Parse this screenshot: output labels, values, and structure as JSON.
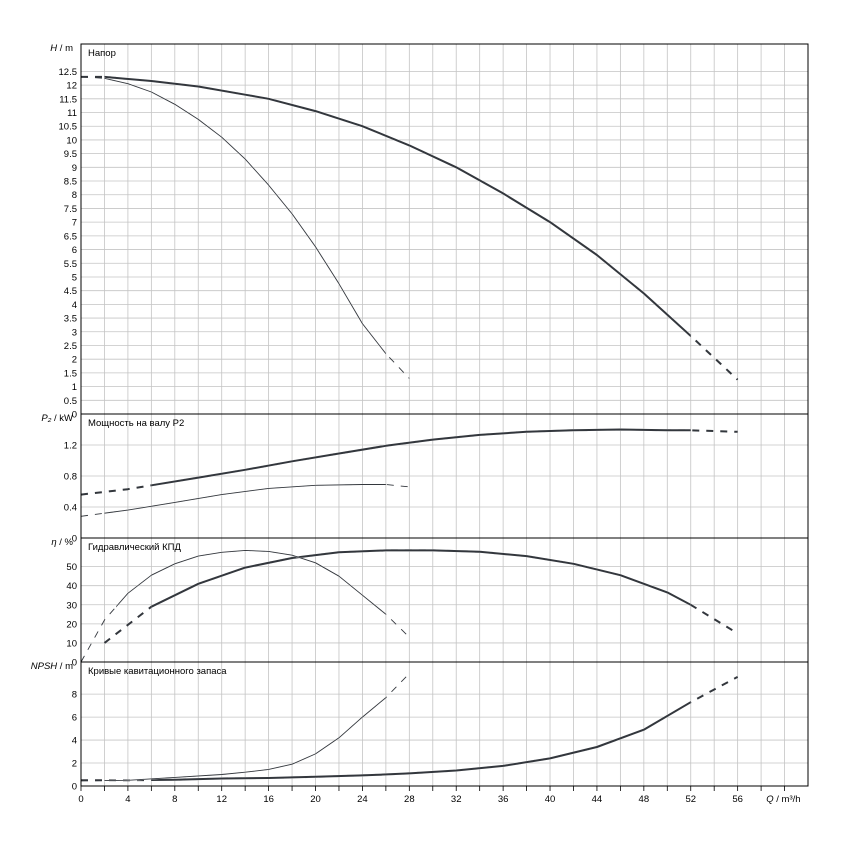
{
  "chart_data": {
    "type": "line",
    "x_axis": {
      "label_var": "Q",
      "label_unit": "m³/h",
      "min": 0,
      "max": 62,
      "ticks": [
        0,
        4,
        8,
        12,
        16,
        20,
        24,
        28,
        32,
        36,
        40,
        44,
        48,
        52,
        56
      ],
      "grid": true
    },
    "panels": [
      {
        "id": "head",
        "title": "Напор",
        "ylabel_var": "H",
        "ylabel_unit": "m",
        "ymin": 0,
        "ymax": 13.5,
        "yticks": [
          0,
          0.5,
          1,
          1.5,
          2,
          2.5,
          3,
          3.5,
          4,
          4.5,
          5,
          5.5,
          6,
          6.5,
          7,
          7.5,
          8,
          8.5,
          9,
          9.5,
          10,
          10.5,
          11,
          11.5,
          12,
          12.5
        ],
        "grid": true,
        "series": [
          {
            "curve": "max-speed",
            "weight": "bold",
            "x": [
              0,
              2,
              6,
              10,
              14,
              16,
              20,
              24,
              28,
              32,
              36,
              40,
              44,
              48,
              52,
              56
            ],
            "y": [
              12.3,
              12.3,
              12.15,
              11.95,
              11.65,
              11.5,
              11.05,
              10.5,
              9.8,
              9.0,
              8.05,
              7.0,
              5.8,
              4.4,
              2.85,
              1.25
            ],
            "solid_range": [
              2,
              52
            ]
          },
          {
            "curve": "min-speed",
            "weight": "thin",
            "x": [
              0,
              2,
              4,
              6,
              8,
              10,
              12,
              14,
              16,
              18,
              20,
              22,
              24,
              26,
              28
            ],
            "y": [
              12.3,
              12.25,
              12.05,
              11.75,
              11.3,
              10.75,
              10.1,
              9.3,
              8.35,
              7.3,
              6.1,
              4.75,
              3.3,
              2.2,
              1.3
            ],
            "solid_range": [
              2,
              26
            ]
          }
        ]
      },
      {
        "id": "power",
        "title": "Мощность на валу P2",
        "ylabel_var": "P₂",
        "ylabel_unit": "kW",
        "ymin": 0,
        "ymax": 1.6,
        "yticks": [
          0,
          0.4,
          0.8,
          1.2
        ],
        "grid": true,
        "series": [
          {
            "curve": "max-speed",
            "weight": "bold",
            "x": [
              0,
              4,
              6,
              10,
              14,
              18,
              22,
              26,
              30,
              34,
              38,
              42,
              46,
              50,
              52,
              56
            ],
            "y": [
              0.56,
              0.63,
              0.68,
              0.78,
              0.88,
              0.99,
              1.09,
              1.19,
              1.27,
              1.33,
              1.37,
              1.39,
              1.4,
              1.39,
              1.39,
              1.37
            ],
            "solid_range": [
              6,
              52
            ]
          },
          {
            "curve": "min-speed",
            "weight": "thin",
            "x": [
              0,
              4,
              8,
              12,
              16,
              20,
              24,
              26,
              28
            ],
            "y": [
              0.28,
              0.36,
              0.46,
              0.56,
              0.64,
              0.68,
              0.69,
              0.69,
              0.66
            ],
            "solid_range": [
              2,
              26
            ]
          }
        ]
      },
      {
        "id": "efficiency",
        "title": "Гидравлический КПД",
        "ylabel_var": "η",
        "ylabel_unit": "%",
        "ymin": 0,
        "ymax": 65,
        "yticks": [
          0,
          10,
          20,
          30,
          40,
          50
        ],
        "grid": true,
        "series": [
          {
            "curve": "max-speed",
            "weight": "bold",
            "x": [
              2,
              6,
              10,
              14,
              18,
              22,
              26,
              30,
              34,
              38,
              42,
              46,
              50,
              52,
              56
            ],
            "y": [
              10,
              29,
              41,
              49.5,
              54.5,
              57.5,
              58.5,
              58.5,
              57.8,
              55.5,
              51.5,
              45.5,
              36.5,
              30,
              15
            ],
            "solid_range": [
              6,
              52
            ]
          },
          {
            "curve": "min-speed",
            "weight": "thin",
            "x": [
              0,
              2,
              4,
              6,
              8,
              10,
              12,
              14,
              16,
              18,
              20,
              22,
              24,
              26,
              28
            ],
            "y": [
              0,
              22,
              36,
              45.5,
              51.5,
              55.5,
              57.5,
              58.5,
              58,
              56,
              52,
              45,
              35,
              25,
              13
            ],
            "solid_range": [
              3,
              26
            ]
          }
        ]
      },
      {
        "id": "npsh",
        "title": "Кривые кавитационного запаса",
        "ylabel_var": "NPSH",
        "ylabel_unit": "m",
        "ymin": 0,
        "ymax": 10.8,
        "yticks": [
          0,
          2,
          4,
          6,
          8
        ],
        "grid": true,
        "series": [
          {
            "curve": "max-speed",
            "weight": "bold",
            "x": [
              0,
              4,
              8,
              12,
              16,
              20,
              24,
              28,
              32,
              36,
              40,
              44,
              48,
              52,
              56
            ],
            "y": [
              0.5,
              0.5,
              0.55,
              0.65,
              0.7,
              0.8,
              0.92,
              1.1,
              1.35,
              1.75,
              2.4,
              3.4,
              4.9,
              7.3,
              9.5
            ],
            "solid_range": [
              6,
              52
            ]
          },
          {
            "curve": "min-speed",
            "weight": "thin",
            "x": [
              0,
              4,
              8,
              12,
              14,
              16,
              18,
              20,
              22,
              24,
              26,
              28
            ],
            "y": [
              0.45,
              0.5,
              0.75,
              1.0,
              1.2,
              1.45,
              1.9,
              2.8,
              4.2,
              6.0,
              7.7,
              9.8
            ],
            "solid_range": [
              2,
              26
            ]
          }
        ]
      }
    ],
    "colors": {
      "curve": "#33373d",
      "grid": "#c4c4c4",
      "frame": "#000000"
    }
  }
}
